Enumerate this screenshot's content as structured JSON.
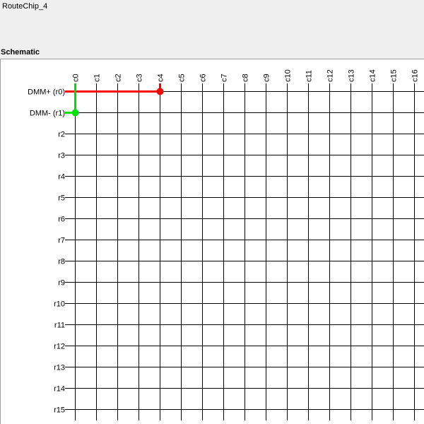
{
  "window": {
    "title": "RouteChip_4"
  },
  "schematic": {
    "section_label": "Schematic",
    "columns": [
      "c0",
      "c1",
      "c2",
      "c3",
      "c4",
      "c5",
      "c6",
      "c7",
      "c8",
      "c9",
      "c10",
      "c11",
      "c12",
      "c13",
      "c14",
      "c15",
      "c16"
    ],
    "rows": [
      "DMM+ (r0)",
      "DMM- (r1)",
      "r2",
      "r3",
      "r4",
      "r5",
      "r6",
      "r7",
      "r8",
      "r9",
      "r10",
      "r11",
      "r12",
      "r13",
      "r14",
      "r15"
    ],
    "routes": [
      {
        "name": "DMM+",
        "color": "#ff0000",
        "row_index": 0,
        "from_col_index": 0,
        "to_col_index": 4,
        "junction_col_index": 4
      },
      {
        "name": "DMM-",
        "color": "#00e000",
        "row_index": 1,
        "from_col_index": 0,
        "to_col_index": 0,
        "junction_col_index": 0
      }
    ]
  }
}
